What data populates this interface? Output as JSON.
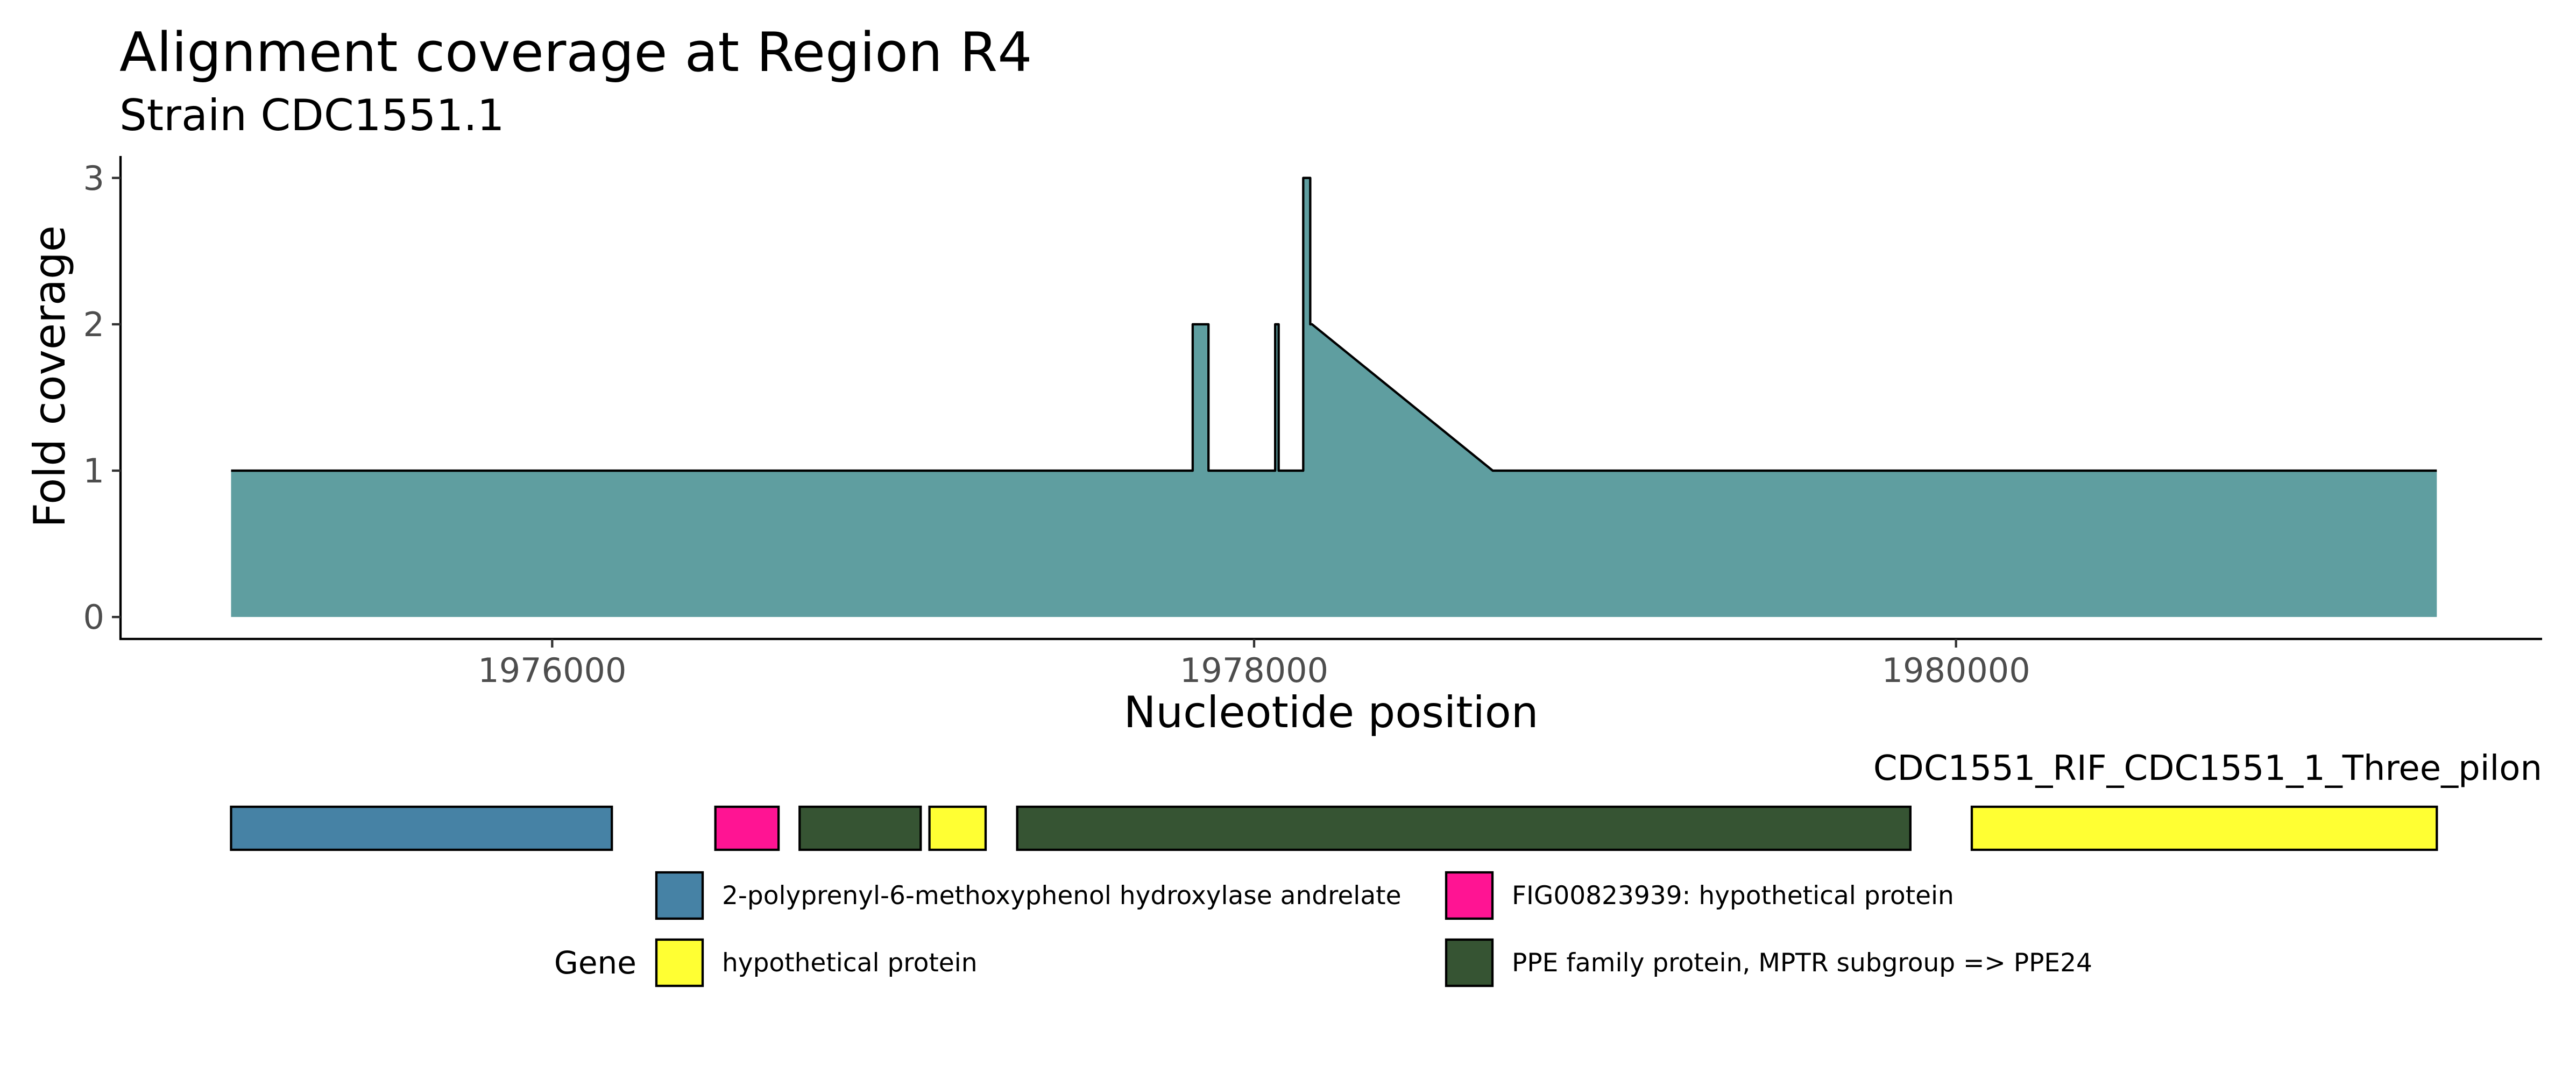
{
  "chart_data": {
    "type": "area",
    "title": "Alignment coverage at Region R4",
    "subtitle": "Strain CDC1551.1",
    "xlabel": "Nucleotide position",
    "ylabel": "Fold coverage",
    "xlim": [
      1974770,
      1981670
    ],
    "ylim": [
      -0.15,
      3.15
    ],
    "x_ticks": [
      1976000,
      1978000,
      1980000
    ],
    "x_tick_labels": [
      "1976000",
      "1978000",
      "1980000"
    ],
    "y_ticks": [
      0,
      1,
      2,
      3
    ],
    "y_tick_labels": [
      "0",
      "1",
      "2",
      "3"
    ],
    "grid": false,
    "fill_color": "#5f9ea0",
    "series": [
      {
        "x": [
          1975085,
          1977825,
          1977825,
          1977870,
          1977870,
          1978060,
          1978060,
          1978070,
          1978070,
          1978140,
          1978140,
          1978160,
          1978160,
          1978165,
          1978680,
          1981370
        ],
        "y": [
          1,
          1,
          2,
          2,
          1,
          1,
          2,
          2,
          1,
          1,
          3,
          3,
          2,
          2,
          1,
          1
        ]
      }
    ],
    "gene_track": {
      "label": "CDC1551_RIF_CDC1551_1_Three_pilon",
      "genes": [
        {
          "start": 1975085,
          "end": 1976170,
          "product": "2-polyprenyl-6-methoxyphenol hydroxylase andrelate"
        },
        {
          "start": 1976465,
          "end": 1976645,
          "product": "FIG00823939: hypothetical protein"
        },
        {
          "start": 1976705,
          "end": 1977050,
          "product": "PPE family protein, MPTR subgroup => PPE24"
        },
        {
          "start": 1977075,
          "end": 1977235,
          "product": "hypothetical protein"
        },
        {
          "start": 1977325,
          "end": 1979870,
          "product": "PPE family protein, MPTR subgroup => PPE24"
        },
        {
          "start": 1980045,
          "end": 1981370,
          "product": "hypothetical protein"
        }
      ]
    },
    "legend": {
      "title": "Gene",
      "placement": "bottom",
      "entries": [
        {
          "label": "2-polyprenyl-6-methoxyphenol hydroxylase andrelate",
          "color": "#4682a5"
        },
        {
          "label": "FIG00823939: hypothetical protein",
          "color": "#ff1493"
        },
        {
          "label": "hypothetical protein",
          "color": "#ffff33"
        },
        {
          "label": "PPE family protein, MPTR subgroup => PPE24",
          "color": "#365433"
        }
      ]
    }
  }
}
